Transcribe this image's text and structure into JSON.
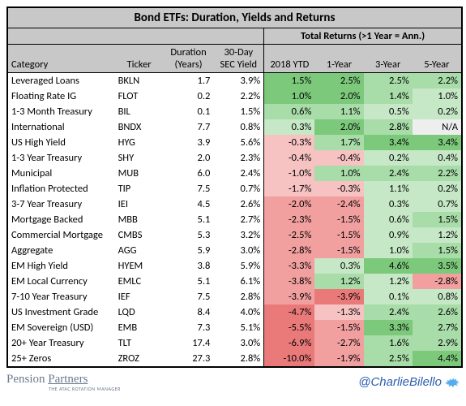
{
  "title": "Bond ETFs: Duration, Yields and Returns",
  "returns_group_label": "Total Returns (>1 Year = Ann.)",
  "columns": {
    "category": "Category",
    "ticker": "Ticker",
    "duration": "Duration (Years)",
    "sec_yield": "30-Day SEC Yield",
    "ytd": "2018 YTD",
    "y1": "1-Year",
    "y3": "3-Year",
    "y5": "5-Year"
  },
  "colors": {
    "header_bg": "#c8c8c8",
    "border": "#000000",
    "green_light": "#c6e8c6",
    "green_mid": "#a8dca8",
    "green_dark": "#7cc97c",
    "pink_light": "#f6c2c2",
    "pink_mid": "#f19f9f",
    "pink_dark": "#ea7a7a",
    "neutral": "#eeeeee"
  },
  "rows": [
    {
      "category": "Leveraged Loans",
      "ticker": "BKLN",
      "duration": "1.7",
      "sec_yield": "3.9%",
      "ytd": "1.5%",
      "y1": "2.5%",
      "y3": "2.5%",
      "y5": "2.2%",
      "c": {
        "ytd": "green_dark",
        "y1": "green_dark",
        "y3": "green_mid",
        "y5": "green_mid"
      }
    },
    {
      "category": "Floating Rate IG",
      "ticker": "FLOT",
      "duration": "0.2",
      "sec_yield": "2.2%",
      "ytd": "1.0%",
      "y1": "2.0%",
      "y3": "1.4%",
      "y5": "1.0%",
      "c": {
        "ytd": "green_dark",
        "y1": "green_dark",
        "y3": "green_mid",
        "y5": "green_light"
      }
    },
    {
      "category": "1-3 Month Treasury",
      "ticker": "BIL",
      "duration": "0.1",
      "sec_yield": "1.5%",
      "ytd": "0.6%",
      "y1": "1.1%",
      "y3": "0.5%",
      "y5": "0.2%",
      "c": {
        "ytd": "green_mid",
        "y1": "green_mid",
        "y3": "green_light",
        "y5": "green_light"
      }
    },
    {
      "category": "International",
      "ticker": "BNDX",
      "duration": "7.7",
      "sec_yield": "0.8%",
      "ytd": "0.3%",
      "y1": "2.0%",
      "y3": "2.8%",
      "y5": "N/A",
      "c": {
        "ytd": "green_light",
        "y1": "green_dark",
        "y3": "green_mid",
        "y5": "neutral"
      }
    },
    {
      "category": "US High Yield",
      "ticker": "HYG",
      "duration": "3.9",
      "sec_yield": "5.6%",
      "ytd": "-0.3%",
      "y1": "1.7%",
      "y3": "3.4%",
      "y5": "3.4%",
      "c": {
        "ytd": "pink_light",
        "y1": "green_mid",
        "y3": "green_dark",
        "y5": "green_dark"
      }
    },
    {
      "category": "1-3 Year Treasury",
      "ticker": "SHY",
      "duration": "2.0",
      "sec_yield": "2.3%",
      "ytd": "-0.4%",
      "y1": "-0.4%",
      "y3": "0.2%",
      "y5": "0.4%",
      "c": {
        "ytd": "pink_light",
        "y1": "pink_light",
        "y3": "green_light",
        "y5": "green_light"
      }
    },
    {
      "category": "Municipal",
      "ticker": "MUB",
      "duration": "6.0",
      "sec_yield": "2.4%",
      "ytd": "-1.0%",
      "y1": "1.0%",
      "y3": "2.4%",
      "y5": "2.2%",
      "c": {
        "ytd": "pink_light",
        "y1": "green_mid",
        "y3": "green_mid",
        "y5": "green_mid"
      }
    },
    {
      "category": "Inflation Protected",
      "ticker": "TIP",
      "duration": "7.5",
      "sec_yield": "0.7%",
      "ytd": "-1.7%",
      "y1": "-0.3%",
      "y3": "1.1%",
      "y5": "0.2%",
      "c": {
        "ytd": "pink_light",
        "y1": "pink_light",
        "y3": "green_light",
        "y5": "green_light"
      }
    },
    {
      "category": "3-7 Year Treasury",
      "ticker": "IEI",
      "duration": "4.5",
      "sec_yield": "2.6%",
      "ytd": "-2.0%",
      "y1": "-2.4%",
      "y3": "0.3%",
      "y5": "0.7%",
      "c": {
        "ytd": "pink_mid",
        "y1": "pink_mid",
        "y3": "green_light",
        "y5": "green_light"
      }
    },
    {
      "category": "Mortgage Backed",
      "ticker": "MBB",
      "duration": "5.1",
      "sec_yield": "2.7%",
      "ytd": "-2.3%",
      "y1": "-1.5%",
      "y3": "0.6%",
      "y5": "1.5%",
      "c": {
        "ytd": "pink_mid",
        "y1": "pink_mid",
        "y3": "green_light",
        "y5": "green_mid"
      }
    },
    {
      "category": "Commercial Mortgage",
      "ticker": "CMBS",
      "duration": "5.3",
      "sec_yield": "3.2%",
      "ytd": "-2.5%",
      "y1": "-1.5%",
      "y3": "0.9%",
      "y5": "1.2%",
      "c": {
        "ytd": "pink_mid",
        "y1": "pink_mid",
        "y3": "green_light",
        "y5": "green_light"
      }
    },
    {
      "category": "Aggregate",
      "ticker": "AGG",
      "duration": "5.9",
      "sec_yield": "3.0%",
      "ytd": "-2.8%",
      "y1": "-1.5%",
      "y3": "1.0%",
      "y5": "1.5%",
      "c": {
        "ytd": "pink_mid",
        "y1": "pink_mid",
        "y3": "green_light",
        "y5": "green_mid"
      }
    },
    {
      "category": "EM High Yield",
      "ticker": "HYEM",
      "duration": "3.8",
      "sec_yield": "5.9%",
      "ytd": "-3.3%",
      "y1": "0.3%",
      "y3": "4.6%",
      "y5": "3.5%",
      "c": {
        "ytd": "pink_mid",
        "y1": "green_light",
        "y3": "green_dark",
        "y5": "green_dark"
      }
    },
    {
      "category": "EM Local Currency",
      "ticker": "EMLC",
      "duration": "5.1",
      "sec_yield": "6.1%",
      "ytd": "-3.8%",
      "y1": "1.2%",
      "y3": "1.2%",
      "y5": "-2.8%",
      "c": {
        "ytd": "pink_mid",
        "y1": "green_mid",
        "y3": "green_light",
        "y5": "pink_mid"
      }
    },
    {
      "category": "7-10 Year Treasury",
      "ticker": "IEF",
      "duration": "7.5",
      "sec_yield": "2.8%",
      "ytd": "-3.9%",
      "y1": "-3.9%",
      "y3": "0.1%",
      "y5": "0.8%",
      "c": {
        "ytd": "pink_mid",
        "y1": "pink_dark",
        "y3": "green_light",
        "y5": "green_light"
      }
    },
    {
      "category": "US Investment Grade",
      "ticker": "LQD",
      "duration": "8.4",
      "sec_yield": "4.0%",
      "ytd": "-4.7%",
      "y1": "-1.3%",
      "y3": "2.4%",
      "y5": "2.6%",
      "c": {
        "ytd": "pink_dark",
        "y1": "pink_light",
        "y3": "green_mid",
        "y5": "green_mid"
      }
    },
    {
      "category": "EM Sovereign (USD)",
      "ticker": "EMB",
      "duration": "7.3",
      "sec_yield": "5.1%",
      "ytd": "-5.5%",
      "y1": "-1.5%",
      "y3": "3.3%",
      "y5": "2.7%",
      "c": {
        "ytd": "pink_dark",
        "y1": "pink_mid",
        "y3": "green_dark",
        "y5": "green_mid"
      }
    },
    {
      "category": "20+ Year Treasury",
      "ticker": "TLT",
      "duration": "17.4",
      "sec_yield": "3.0%",
      "ytd": "-6.9%",
      "y1": "-2.7%",
      "y3": "1.6%",
      "y5": "2.9%",
      "c": {
        "ytd": "pink_dark",
        "y1": "pink_mid",
        "y3": "green_mid",
        "y5": "green_mid"
      }
    },
    {
      "category": "25+ Zeros",
      "ticker": "ZROZ",
      "duration": "27.3",
      "sec_yield": "2.8%",
      "ytd": "-10.0%",
      "y1": "-1.9%",
      "y3": "2.5%",
      "y5": "4.4%",
      "c": {
        "ytd": "pink_dark",
        "y1": "pink_mid",
        "y3": "green_mid",
        "y5": "green_dark"
      }
    }
  ],
  "footer": {
    "logo_text": "Pension Partners",
    "logo_sub": "THE ATAC ROTATION MANAGER",
    "handle": "@CharlieBilello"
  }
}
